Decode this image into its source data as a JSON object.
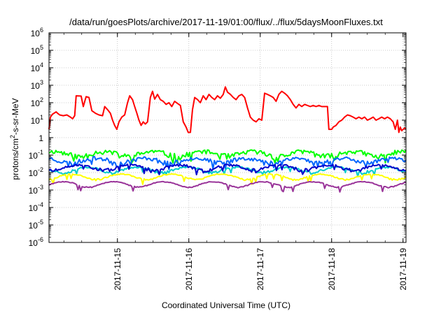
{
  "chart_data": {
    "type": "line",
    "title": "/data/run/goesPlots/archive/2017-11-19/01:00/flux/../flux/5daysMoonFluxes.txt",
    "xlabel": "Coordinated Universal Time (UTC)",
    "ylabel": {
      "pre": "protons/cm",
      "sup": "2",
      "post": "-s-sr-MeV"
    },
    "x_ticks": [
      "2017-11-15",
      "2017-11-16",
      "2017-11-17",
      "2017-11-18",
      "2017-11-19"
    ],
    "y_ticks": [
      {
        "base": "10",
        "exp": "-6"
      },
      {
        "base": "10",
        "exp": "-5"
      },
      {
        "base": "10",
        "exp": "-4"
      },
      {
        "base": "10",
        "exp": "-3"
      },
      {
        "base": "10",
        "exp": "-2"
      },
      {
        "base": "10",
        "exp": "-1"
      },
      {
        "base": "1",
        "exp": ""
      },
      {
        "base": "10",
        "exp": "1"
      },
      {
        "base": "10",
        "exp": "2"
      },
      {
        "base": "10",
        "exp": "3"
      },
      {
        "base": "10",
        "exp": "4"
      },
      {
        "base": "10",
        "exp": "5"
      },
      {
        "base": "10",
        "exp": "6"
      }
    ],
    "y_scale": "log",
    "ylim": [
      1e-06,
      1000000.0
    ],
    "xlim": [
      "2017-11-14 01:00",
      "2017-11-19 01:00"
    ],
    "grid": true,
    "series_colors": [
      "#ff0000",
      "#00ff00",
      "#0066ff",
      "#00cccc",
      "#0000cc",
      "#ffff00",
      "#993399"
    ],
    "series": [
      {
        "color": "#ff0000",
        "points": [
          [
            0.0,
            3
          ],
          [
            0.02,
            15
          ],
          [
            0.05,
            22
          ],
          [
            0.1,
            30
          ],
          [
            0.12,
            25
          ],
          [
            0.15,
            20
          ],
          [
            0.2,
            18
          ],
          [
            0.25,
            20
          ],
          [
            0.3,
            15
          ],
          [
            0.33,
            12
          ],
          [
            0.36,
            18
          ],
          [
            0.38,
            250
          ],
          [
            0.45,
            240
          ],
          [
            0.48,
            60
          ],
          [
            0.52,
            220
          ],
          [
            0.56,
            200
          ],
          [
            0.6,
            35
          ],
          [
            0.65,
            25
          ],
          [
            0.7,
            20
          ],
          [
            0.75,
            18
          ],
          [
            0.78,
            60
          ],
          [
            0.82,
            40
          ],
          [
            0.86,
            25
          ],
          [
            0.89,
            10
          ],
          [
            0.92,
            5
          ],
          [
            0.95,
            3
          ],
          [
            0.98,
            8
          ],
          [
            1.02,
            15
          ],
          [
            1.06,
            20
          ],
          [
            1.1,
            100
          ],
          [
            1.13,
            250
          ],
          [
            1.17,
            150
          ],
          [
            1.2,
            60
          ],
          [
            1.23,
            25
          ],
          [
            1.26,
            10
          ],
          [
            1.29,
            5
          ],
          [
            1.32,
            8
          ],
          [
            1.35,
            6
          ],
          [
            1.38,
            8
          ],
          [
            1.42,
            200
          ],
          [
            1.45,
            450
          ],
          [
            1.48,
            160
          ],
          [
            1.52,
            300
          ],
          [
            1.56,
            150
          ],
          [
            1.6,
            120
          ],
          [
            1.64,
            80
          ],
          [
            1.68,
            100
          ],
          [
            1.72,
            60
          ],
          [
            1.76,
            120
          ],
          [
            1.8,
            90
          ],
          [
            1.84,
            70
          ],
          [
            1.88,
            8
          ],
          [
            1.92,
            4
          ],
          [
            1.95,
            2
          ],
          [
            1.98,
            2
          ],
          [
            2.01,
            40
          ],
          [
            2.04,
            200
          ],
          [
            2.08,
            150
          ],
          [
            2.12,
            100
          ],
          [
            2.16,
            250
          ],
          [
            2.2,
            150
          ],
          [
            2.24,
            300
          ],
          [
            2.28,
            200
          ],
          [
            2.32,
            150
          ],
          [
            2.36,
            250
          ],
          [
            2.4,
            180
          ],
          [
            2.44,
            300
          ],
          [
            2.47,
            800
          ],
          [
            2.5,
            400
          ],
          [
            2.54,
            300
          ],
          [
            2.58,
            200
          ],
          [
            2.62,
            150
          ],
          [
            2.66,
            250
          ],
          [
            2.7,
            300
          ],
          [
            2.74,
            200
          ],
          [
            2.78,
            50
          ],
          [
            2.82,
            15
          ],
          [
            2.86,
            10
          ],
          [
            2.9,
            8
          ],
          [
            2.94,
            12
          ],
          [
            2.98,
            10
          ],
          [
            3.02,
            350
          ],
          [
            3.06,
            300
          ],
          [
            3.1,
            250
          ],
          [
            3.14,
            200
          ],
          [
            3.18,
            120
          ],
          [
            3.22,
            300
          ],
          [
            3.26,
            450
          ],
          [
            3.3,
            350
          ],
          [
            3.34,
            250
          ],
          [
            3.38,
            150
          ],
          [
            3.42,
            80
          ],
          [
            3.46,
            50
          ],
          [
            3.5,
            80
          ],
          [
            3.54,
            60
          ],
          [
            3.58,
            80
          ],
          [
            3.62,
            70
          ],
          [
            3.66,
            60
          ],
          [
            3.7,
            70
          ],
          [
            3.74,
            60
          ],
          [
            3.78,
            70
          ],
          [
            3.82,
            60
          ],
          [
            3.86,
            60
          ],
          [
            3.9,
            60
          ],
          [
            3.92,
            3
          ],
          [
            3.94,
            3
          ],
          [
            3.96,
            3
          ],
          [
            3.98,
            4
          ],
          [
            4.02,
            5
          ],
          [
            4.06,
            8
          ],
          [
            4.1,
            10
          ],
          [
            4.14,
            15
          ],
          [
            4.18,
            20
          ],
          [
            4.22,
            18
          ],
          [
            4.26,
            15
          ],
          [
            4.3,
            12
          ],
          [
            4.34,
            15
          ],
          [
            4.38,
            12
          ],
          [
            4.42,
            15
          ],
          [
            4.46,
            10
          ],
          [
            4.5,
            12
          ],
          [
            4.54,
            15
          ],
          [
            4.58,
            10
          ],
          [
            4.62,
            12
          ],
          [
            4.66,
            15
          ],
          [
            4.7,
            12
          ],
          [
            4.74,
            15
          ],
          [
            4.78,
            12
          ],
          [
            4.82,
            8
          ],
          [
            4.85,
            3
          ],
          [
            4.88,
            10
          ],
          [
            4.9,
            2
          ],
          [
            4.92,
            4
          ],
          [
            4.94,
            2.5
          ],
          [
            4.96,
            3
          ],
          [
            4.98,
            3.5
          ],
          [
            5.0,
            3
          ]
        ]
      },
      {
        "color": "#00ff00",
        "base": 0.12,
        "amp": 0.35,
        "seed": 11,
        "x_start": 0.0,
        "x_end": 5.0,
        "n": 260
      },
      {
        "color": "#0066ff",
        "base": 0.05,
        "amp": 0.3,
        "seed": 23,
        "x_start": 0.0,
        "x_end": 5.0,
        "n": 260
      },
      {
        "color": "#00cccc",
        "base": 0.015,
        "amp": 0.15,
        "seed": 37,
        "x_start": 0.0,
        "x_end": 5.0,
        "n": 260
      },
      {
        "color": "#0000cc",
        "base": 0.02,
        "amp": 0.18,
        "seed": 51,
        "x_start": 0.0,
        "x_end": 5.0,
        "n": 260
      },
      {
        "color": "#ffff00",
        "base": 0.006,
        "amp": 0.08,
        "seed": 67,
        "x_start": 0.0,
        "x_end": 5.0,
        "n": 260
      },
      {
        "color": "#993399",
        "base": 0.0022,
        "amp": 0.06,
        "seed": 83,
        "x_start": 0.0,
        "x_end": 5.0,
        "n": 260
      }
    ]
  }
}
